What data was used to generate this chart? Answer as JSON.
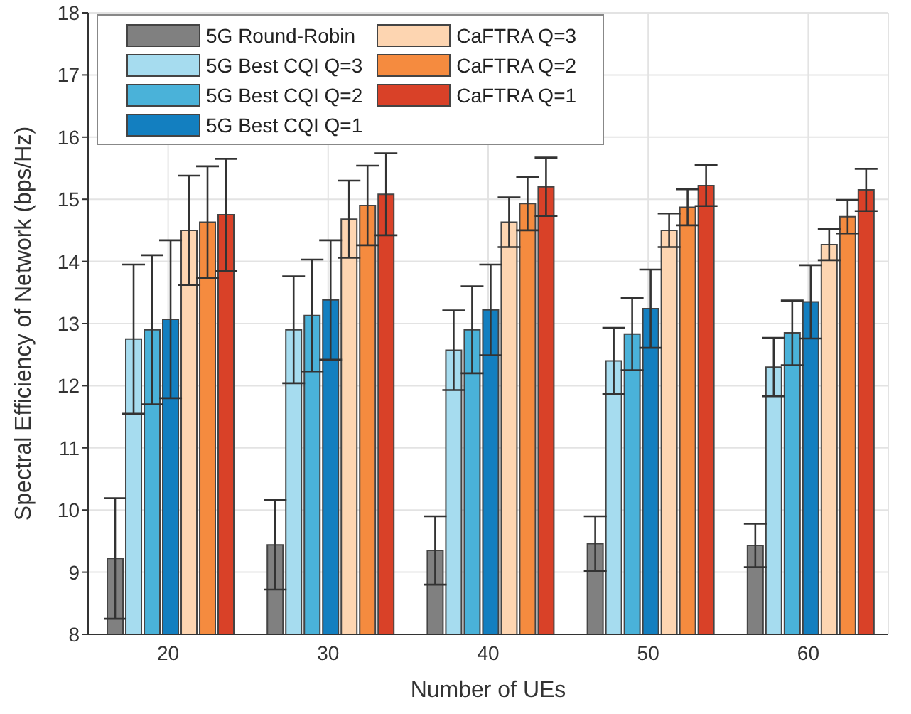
{
  "chart_data": {
    "type": "bar",
    "xlabel": "Number of UEs",
    "ylabel": "Spectral Efficiency of Network (bps/Hz)",
    "categories": [
      "20",
      "30",
      "40",
      "50",
      "60"
    ],
    "ylim": [
      8,
      18
    ],
    "yticks": [
      8,
      9,
      10,
      11,
      12,
      13,
      14,
      15,
      16,
      17,
      18
    ],
    "grid": true,
    "legend": "top left",
    "series": [
      {
        "name": "5G Round-Robin",
        "color": "#808080",
        "values": [
          9.22,
          9.44,
          9.35,
          9.46,
          9.43
        ],
        "errors": [
          0.97,
          0.72,
          0.55,
          0.44,
          0.35
        ]
      },
      {
        "name": "5G Best CQI Q=3",
        "color": "#a6dcef",
        "values": [
          12.75,
          12.9,
          12.57,
          12.4,
          12.3
        ],
        "errors": [
          1.2,
          0.86,
          0.64,
          0.53,
          0.47
        ]
      },
      {
        "name": "5G Best CQI Q=2",
        "color": "#4ab2d9",
        "values": [
          12.9,
          13.13,
          12.9,
          12.83,
          12.85
        ],
        "errors": [
          1.2,
          0.9,
          0.7,
          0.58,
          0.52
        ]
      },
      {
        "name": "5G Best CQI Q=1",
        "color": "#137fc0",
        "values": [
          13.07,
          13.38,
          13.22,
          13.24,
          13.35
        ],
        "errors": [
          1.27,
          0.96,
          0.73,
          0.63,
          0.59
        ]
      },
      {
        "name": "CaFTRA Q=3",
        "color": "#fdd5b1",
        "values": [
          14.5,
          14.68,
          14.63,
          14.5,
          14.27
        ],
        "errors": [
          0.88,
          0.62,
          0.4,
          0.27,
          0.25
        ]
      },
      {
        "name": "CaFTRA Q=2",
        "color": "#f58b3f",
        "values": [
          14.63,
          14.9,
          14.93,
          14.87,
          14.72
        ],
        "errors": [
          0.9,
          0.64,
          0.43,
          0.29,
          0.27
        ]
      },
      {
        "name": "CaFTRA Q=1",
        "color": "#d94128",
        "values": [
          14.75,
          15.08,
          15.2,
          15.22,
          15.15
        ],
        "errors": [
          0.9,
          0.66,
          0.47,
          0.33,
          0.34
        ]
      }
    ]
  }
}
